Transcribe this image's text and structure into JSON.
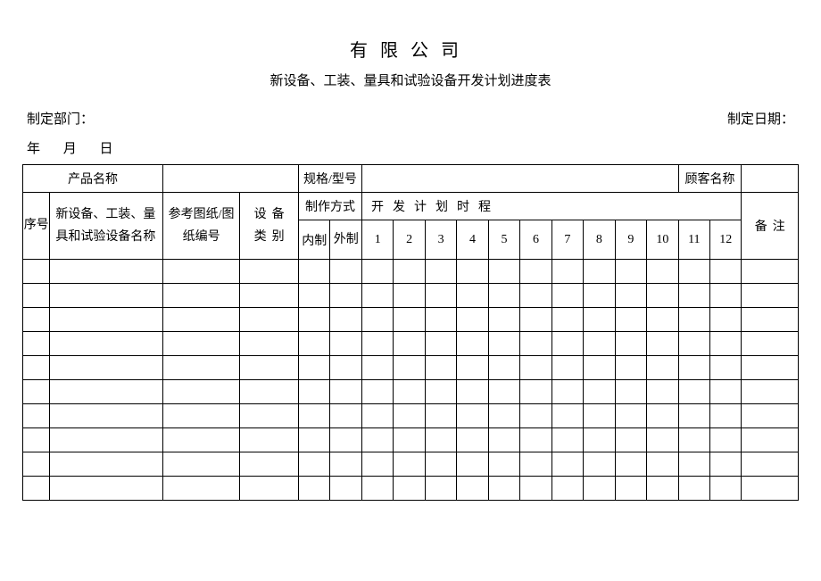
{
  "title_main": "有限公司",
  "title_sub": "新设备、工装、量具和试验设备开发计划进度表",
  "meta": {
    "dept_label": "制定部门：",
    "date_label": "制定日期：",
    "year": "年",
    "month": "月",
    "day": "日"
  },
  "info_row": {
    "product_name_label": "产品名称",
    "spec_label": "规格/型号",
    "customer_label": "顾客名称"
  },
  "headers": {
    "seq": "序号",
    "equip_name": "新设备、工装、量具和试验设备名称",
    "ref_drawing": "参考图纸/图纸编号",
    "equip_type": "设备类别",
    "make_mode": "制作方式",
    "make_internal": "内制",
    "make_external": "外制",
    "dev_schedule": "开发计划时程",
    "remarks": "备注",
    "months": [
      "1",
      "2",
      "3",
      "4",
      "5",
      "6",
      "7",
      "8",
      "9",
      "10",
      "11",
      "12"
    ]
  },
  "body_rows": 10,
  "style": {
    "border_color": "#000000",
    "background": "#ffffff",
    "text_color": "#000000",
    "font_family": "SimSun",
    "title_fontsize": 20,
    "body_fontsize": 14
  }
}
